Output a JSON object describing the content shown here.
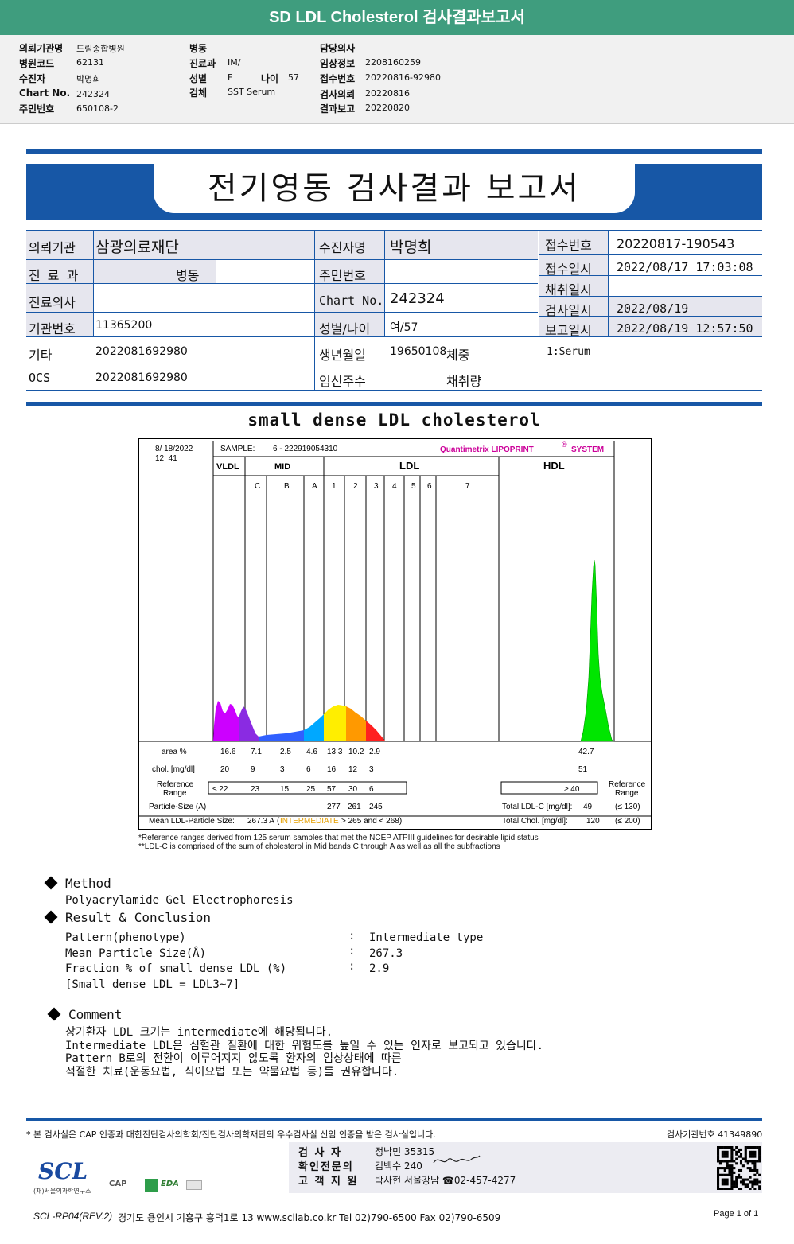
{
  "header": {
    "title": "SD LDL Cholesterol 검사결과보고서",
    "col1": [
      {
        "label": "의뢰기관명",
        "value": "드림종합병원"
      },
      {
        "label": "병원코드",
        "value": "62131"
      },
      {
        "label": "수진자",
        "value": "박명희"
      },
      {
        "label": "Chart No.",
        "value": "242324"
      },
      {
        "label": "주민번호",
        "value": "650108-2"
      }
    ],
    "col2": [
      {
        "label": "병동",
        "value": ""
      },
      {
        "label": "진료과",
        "value": "IM/"
      },
      {
        "label": "성별",
        "value": "F"
      },
      {
        "label": "검체",
        "value": "SST Serum"
      }
    ],
    "age_label": "나이",
    "age_value": "57",
    "col3": [
      {
        "label": "담당의사",
        "value": ""
      },
      {
        "label": "임상정보",
        "value": "2208160259"
      },
      {
        "label": "접수번호",
        "value": "20220816-92980"
      },
      {
        "label": "검사의뢰",
        "value": "20220816"
      },
      {
        "label": "결과보고",
        "value": "20220820"
      }
    ]
  },
  "report": {
    "title": "전기영동 검사결과 보고서",
    "institution_label": "의뢰기관",
    "institution": "삼광의료재단",
    "patient_label": "수진자명",
    "patient": "박명희",
    "receipt_no_label": "접수번호",
    "receipt_no": "20220817-190543",
    "dept_label": "진 료 과",
    "dept": "병동",
    "id_label": "주민번호",
    "id": "",
    "receipt_date_label": "접수일시",
    "receipt_date": "2022/08/17 17:03:08",
    "doctor_label": "진료의사",
    "doctor": "",
    "chart_label": "Chart No.",
    "chart_no": "242324",
    "collect_date_label": "채취일시",
    "collect_date": "",
    "inst_no_label": "기관번호",
    "inst_no": "11365200",
    "sex_age_label": "성별/나이",
    "sex_age": "여/57",
    "test_date_label": "검사일시",
    "test_date": "2022/08/19",
    "report_date_label": "보고일시",
    "report_date": "2022/08/19 12:57:50",
    "etc_label": "기타",
    "etc": "2022081692980",
    "birth_label": "생년월일",
    "birth": "19650108",
    "weight_label": "체중",
    "specimen": "1:Serum",
    "ocs_label": "OCS",
    "ocs": "2022081692980",
    "preg_label": "임신주수",
    "amount_label": "채취량"
  },
  "chart_data": {
    "type": "area",
    "title": "small dense LDL cholesterol",
    "date": "8/ 18/2022",
    "time": "12: 41",
    "sample_label": "SAMPLE:",
    "sample": "6 - 222919054310",
    "brand": "Quantimetrix LIPOPRINT",
    "brand_mark": "®",
    "brand_suffix": "SYSTEM",
    "groups": [
      "VLDL",
      "MID",
      "LDL",
      "HDL"
    ],
    "bands": [
      "C",
      "B",
      "A",
      "1",
      "2",
      "3",
      "4",
      "5",
      "6",
      "7"
    ],
    "area_label": "area %",
    "chol_label": "chol. [mg/dl]",
    "ref_label_1": "Reference",
    "ref_label_2": "Range",
    "fractions": [
      {
        "name": "VLDL",
        "area": "16.6",
        "chol": "20",
        "ref": "≤ 22",
        "color": "#cc00ff"
      },
      {
        "name": "C",
        "area": "7.1",
        "chol": "9",
        "ref": "23",
        "color": "#8a2be2"
      },
      {
        "name": "B",
        "area": "2.5",
        "chol": "3",
        "ref": "15",
        "color": "#3060ff"
      },
      {
        "name": "A",
        "area": "4.6",
        "chol": "6",
        "ref": "25",
        "color": "#00a8ff"
      },
      {
        "name": "1",
        "area": "13.3",
        "chol": "16",
        "ref": "57",
        "color": "#ffee00"
      },
      {
        "name": "2",
        "area": "10.2",
        "chol": "12",
        "ref": "30",
        "color": "#ff9900"
      },
      {
        "name": "3",
        "area": "2.9",
        "chol": "3",
        "ref": "6",
        "color": "#ff2020"
      },
      {
        "name": "HDL",
        "area": "42.7",
        "chol": "51",
        "ref": "≥ 40",
        "color": "#00e600"
      }
    ],
    "particle_size_label": "Particle-Size (A)",
    "particle_sizes": [
      "277",
      "261",
      "245"
    ],
    "mean_size_label": "Mean LDL-Particle Size:",
    "mean_size_value": "267.3 A",
    "mean_size_class": "INTERMEDIATE",
    "mean_size_range": "> 265 and < 268)",
    "mean_size_open": "(",
    "total_ldlc_label": "Total LDL-C [mg/dl]:",
    "total_ldlc": "49",
    "total_ldlc_ref": "(≤ 130)",
    "total_chol_label": "Total Chol. [mg/dl]:",
    "total_chol": "120",
    "total_chol_ref": "(≤ 200)"
  },
  "footnotes": [
    "*Reference ranges derived from 125 serum samples that met the NCEP ATPIII guidelines for desirable lipid status",
    "**LDL-C is comprised of the sum of cholesterol in Mid bands C through A as well as all the subfractions"
  ],
  "method": {
    "heading": "Method",
    "text": "Polyacrylamide Gel Electrophoresis"
  },
  "result": {
    "heading": "Result & Conclusion",
    "rows": [
      {
        "label": "Pattern(phenotype)",
        "value": "Intermediate type"
      },
      {
        "label": "Mean Particle Size(Å)",
        "value": "267.3"
      },
      {
        "label": "Fraction % of small dense LDL (%)",
        "value": "2.9"
      }
    ],
    "note": "[Small dense LDL = LDL3~7]",
    "colon": ":"
  },
  "comment": {
    "heading": "Comment",
    "lines": [
      "상기환자 LDL 크기는 intermediate에 해당됩니다.",
      "Intermediate LDL은 심혈관 질환에 대한 위험도를 높일 수 있는 인자로 보고되고 있습니다.",
      "Pattern B로의 전환이 이루어지지 않도록 환자의 임상상태에 따른",
      "적절한 치료(운동요법, 식이요법 또는 약물요법 등)를 권유합니다."
    ]
  },
  "footer": {
    "cert": "* 본 검사실은 CAP 인증과 대한진단검사의학회/진단검사의학재단의 우수검사실 신임 인증을 받은 검사실입니다.",
    "lab_no": "검사기관번호 41349890",
    "signers": [
      {
        "role": "검 사 자",
        "name": "정낙민 35315"
      },
      {
        "role": "확인전문의",
        "name": "김백수 240"
      },
      {
        "role": "고 객 지 원",
        "name": "박사현 서울강남 ☎02-457-4277"
      }
    ],
    "logo": "SCL",
    "logo_sub": "(재)서울의과학연구소",
    "cert_logos": [
      "CAP",
      "EDA"
    ],
    "form": "SCL-RP04(REV.2)",
    "address": "경기도 용인시 기흥구 흥덕1로 13  www.scllab.co.kr  Tel 02)790-6500  Fax 02)790-6509",
    "page": "Page 1 of 1"
  }
}
